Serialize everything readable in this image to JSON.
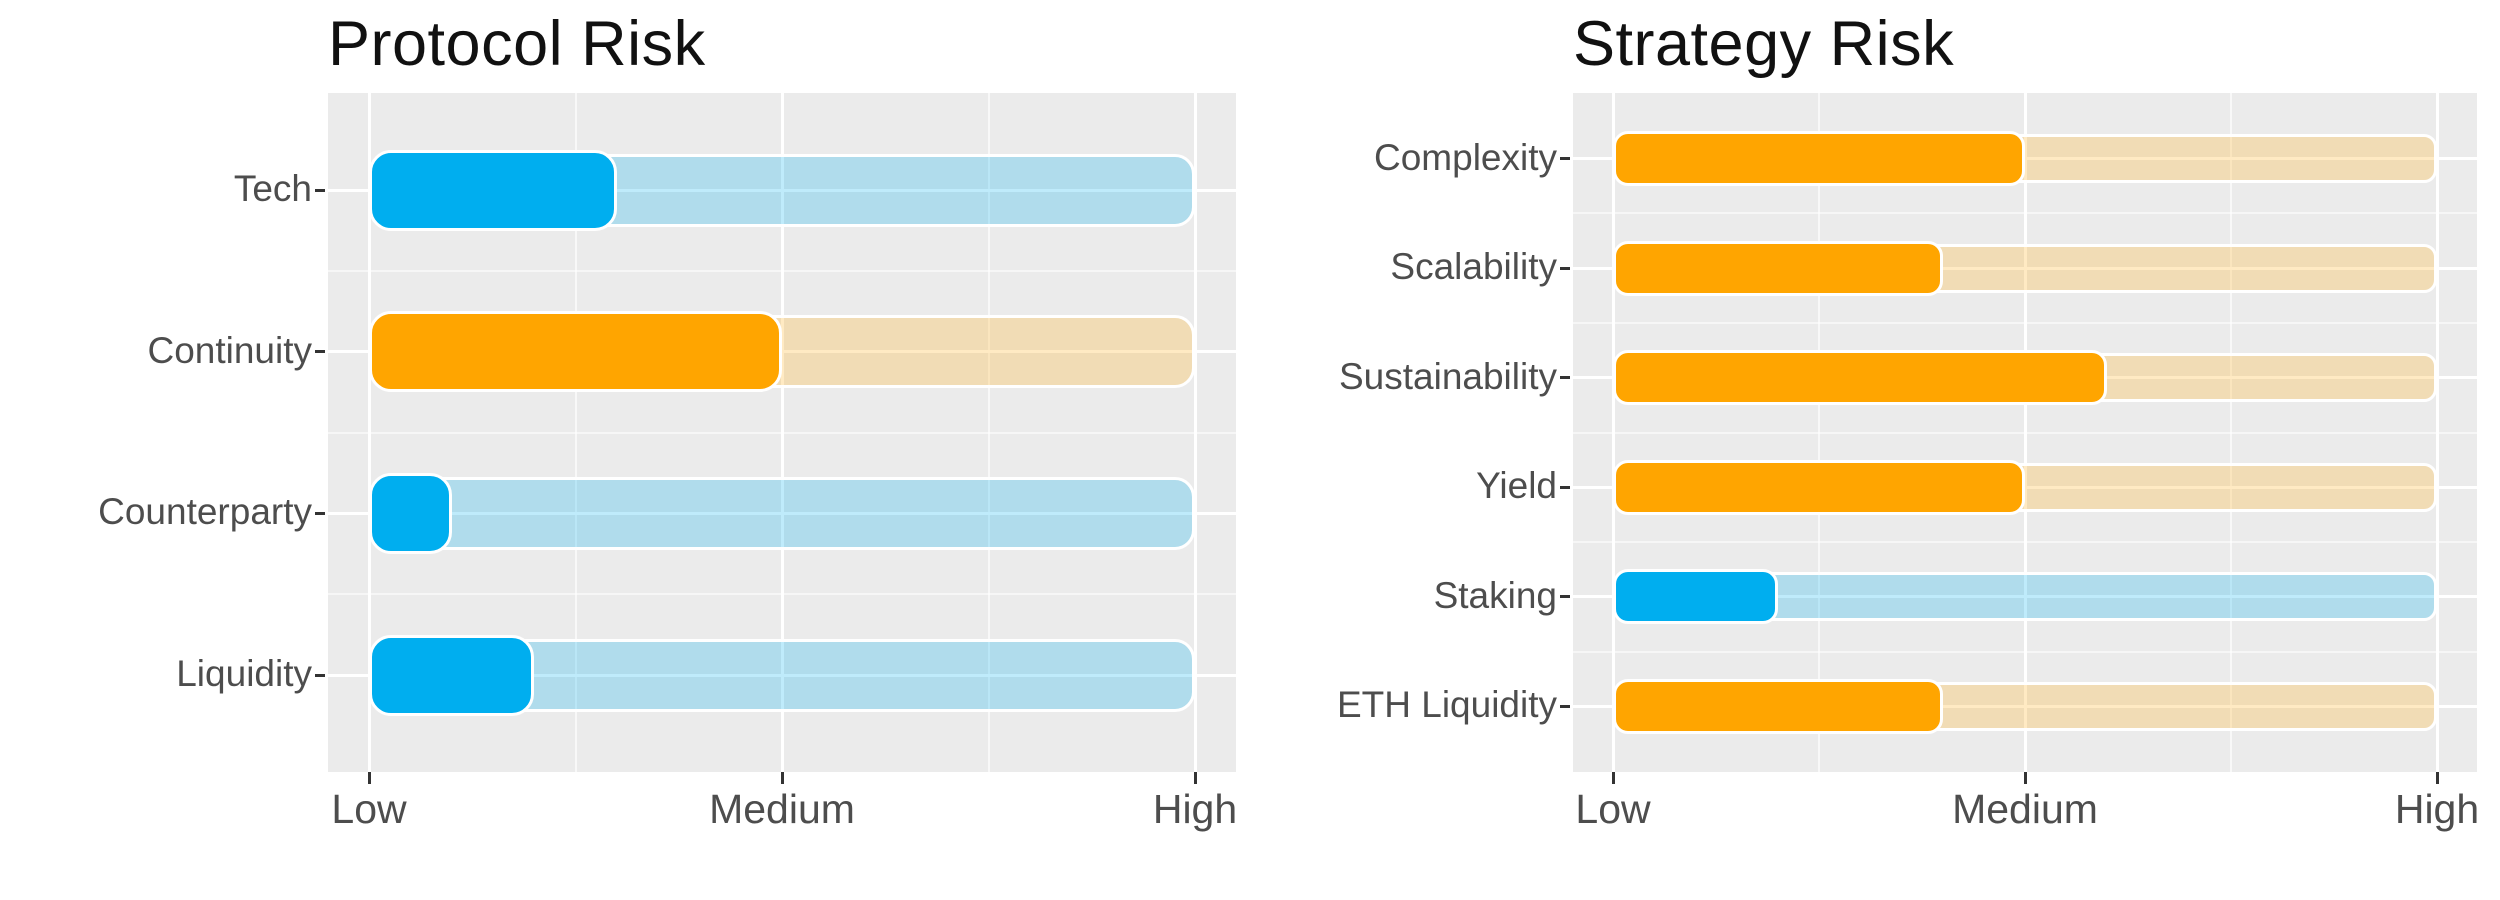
{
  "page": {
    "background": "#ffffff"
  },
  "colors": {
    "blue": "#00AEEF",
    "orange": "#FFA500",
    "track_blue": "rgba(0, 174, 239, 0.25)",
    "track_orange": "rgba(255, 186, 56, 0.30)",
    "panel_background": "#EBEBEB",
    "gridline": "#FFFFFF",
    "axis_text": "#4D4D4D",
    "tick_mark": "#333333",
    "title_text": "#111111"
  },
  "chart_data": [
    {
      "type": "bar",
      "orientation": "horizontal",
      "title": "Protocol Risk",
      "categories": [
        "Tech",
        "Continuity",
        "Counterparty",
        "Liquidity"
      ],
      "values": [
        1.6,
        2.0,
        1.2,
        1.4
      ],
      "bar_colors": [
        "blue",
        "orange",
        "blue",
        "blue"
      ],
      "track_value": 3,
      "x_ticks": [
        {
          "label": "Low",
          "value": 1
        },
        {
          "label": "Medium",
          "value": 2
        },
        {
          "label": "High",
          "value": 3
        }
      ],
      "x_range": [
        1,
        3
      ],
      "grid": true,
      "legend": false
    },
    {
      "type": "bar",
      "orientation": "horizontal",
      "title": "Strategy Risk",
      "categories": [
        "Complexity",
        "Scalability",
        "Sustainability",
        "Yield",
        "Staking",
        "ETH Liquidity"
      ],
      "values": [
        2.0,
        1.8,
        2.2,
        2.0,
        1.4,
        1.8
      ],
      "bar_colors": [
        "orange",
        "orange",
        "orange",
        "orange",
        "blue",
        "orange"
      ],
      "track_value": 3,
      "x_ticks": [
        {
          "label": "Low",
          "value": 1
        },
        {
          "label": "Medium",
          "value": 2
        },
        {
          "label": "High",
          "value": 3
        }
      ],
      "x_range": [
        1,
        3
      ],
      "grid": true,
      "legend": false
    }
  ]
}
